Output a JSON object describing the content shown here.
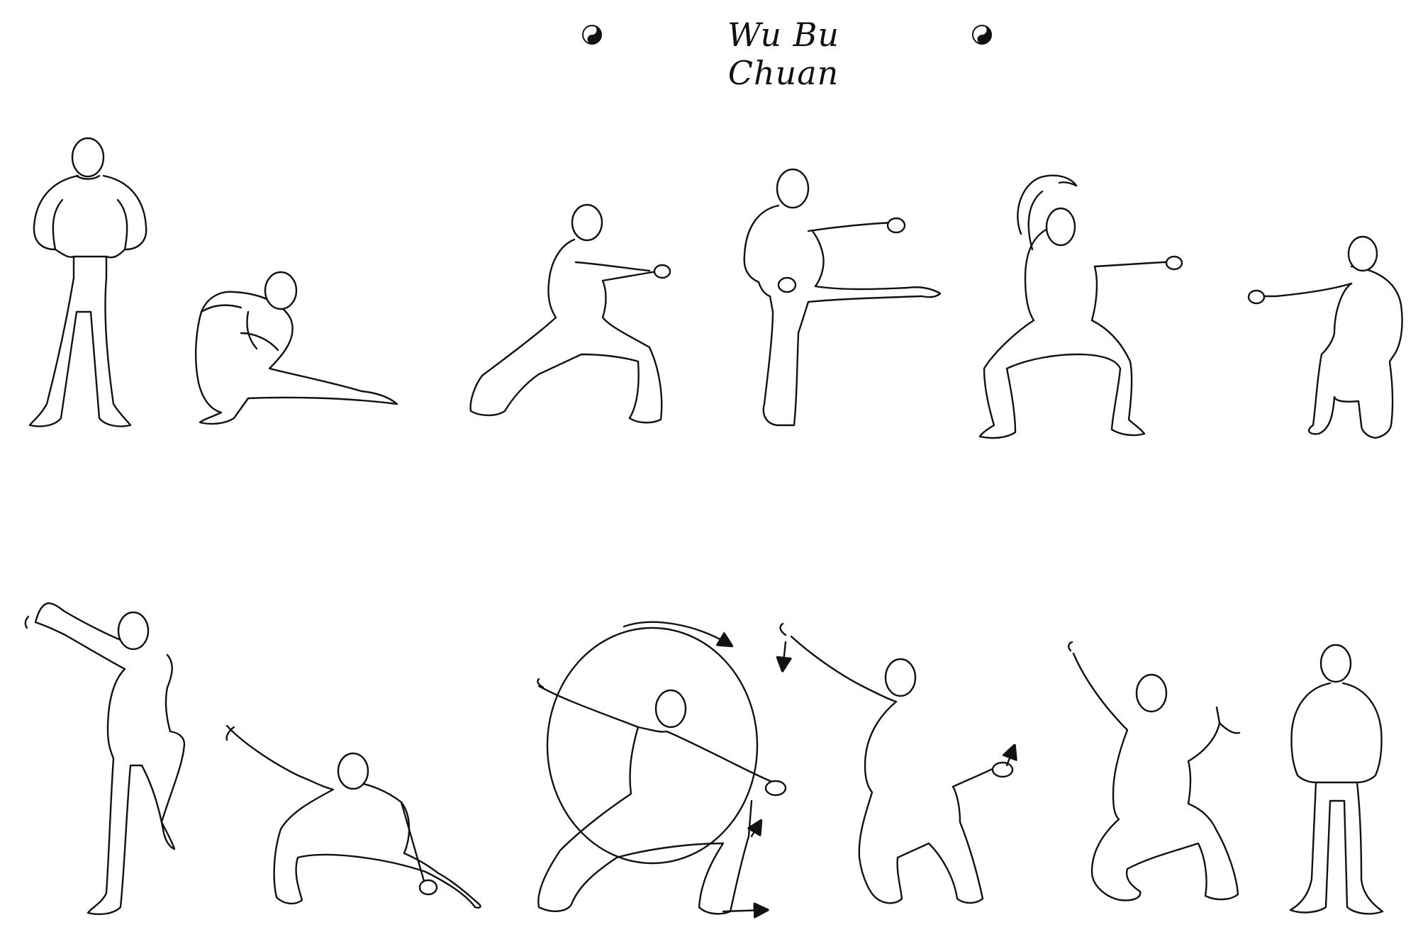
{
  "header": {
    "title": "Wu Bu Chuan",
    "left_icon": "yin-yang-icon",
    "right_icon": "yin-yang-icon"
  },
  "figures": {
    "top_row": [
      "standing-ready",
      "crouch-step",
      "bow-stance-punch",
      "front-kick-punch",
      "horse-stance-block-punch",
      "kneeling-punch"
    ],
    "bottom_row": [
      "one-leg-raised-arm",
      "low-crouch-extend",
      "circle-sweep-bow-stance",
      "twist-stance-reach",
      "hook-crouch",
      "closing-stance"
    ]
  },
  "colors": {
    "ink": "#111111",
    "paper": "#ffffff"
  }
}
